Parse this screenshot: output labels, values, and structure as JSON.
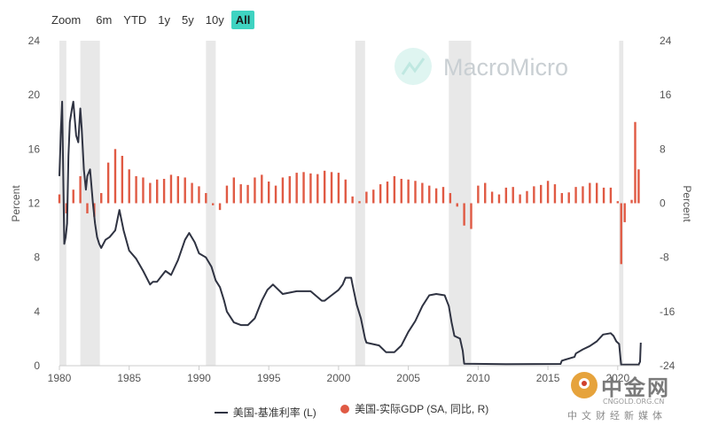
{
  "zoom": {
    "label": "Zoom",
    "buttons": [
      "6m",
      "YTD",
      "1y",
      "5y",
      "10y",
      "All"
    ],
    "active": "All",
    "active_color": "#3fd3c1"
  },
  "watermark": {
    "brand": "MacroMicro",
    "icon": "macromicro-logo-icon",
    "cn_big": "中金网",
    "cn_url": "CNGOLD.ORG.CN",
    "cn_sub": "中文财经新媒体"
  },
  "legend": {
    "line_label": "美国-基准利率 (L)",
    "bar_label": "美国-实际GDP (SA, 同比, R)"
  },
  "chart_data": {
    "type": "line+bar",
    "title": "",
    "xlabel": "",
    "ylabel_left": "Percent",
    "ylabel_right": "Percent",
    "xlim": [
      1980,
      2021.6
    ],
    "x_ticks": [
      "1980",
      "1985",
      "1990",
      "1995",
      "2000",
      "2005",
      "2010",
      "2015",
      "2020"
    ],
    "ylim_left": [
      0,
      24
    ],
    "left_ticks": [
      "0",
      "4",
      "8",
      "12",
      "16",
      "20",
      "24"
    ],
    "ylim_right": [
      -24,
      24
    ],
    "right_ticks": [
      "-24",
      "-16",
      "-8",
      "0",
      "8",
      "16",
      "24"
    ],
    "grid": false,
    "legend_position": "bottom",
    "colors": {
      "line": "#2f3342",
      "bar": "#e05a44",
      "recession": "#e8e8e8"
    },
    "recessions": [
      [
        1980.0,
        1980.5
      ],
      [
        1981.5,
        1982.9
      ],
      [
        1990.5,
        1991.2
      ],
      [
        2001.2,
        2001.9
      ],
      [
        2007.9,
        2009.5
      ],
      [
        2020.1,
        2020.4
      ]
    ],
    "series": [
      {
        "name": "美国-基准利率 (L)",
        "type": "line",
        "x": [
          1980.0,
          1980.1,
          1980.2,
          1980.3,
          1980.35,
          1980.45,
          1980.55,
          1980.65,
          1980.75,
          1980.9,
          1981.0,
          1981.2,
          1981.35,
          1981.5,
          1981.6,
          1981.75,
          1981.9,
          1982.0,
          1982.2,
          1982.4,
          1982.55,
          1982.7,
          1982.85,
          1983.0,
          1983.3,
          1983.6,
          1984.0,
          1984.3,
          1984.6,
          1985.0,
          1985.5,
          1986.0,
          1986.5,
          1986.7,
          1987.0,
          1987.3,
          1987.6,
          1988.0,
          1988.5,
          1989.0,
          1989.3,
          1989.7,
          1990.0,
          1990.5,
          1990.9,
          1991.2,
          1991.5,
          1991.8,
          1992.0,
          1992.5,
          1993.0,
          1993.5,
          1994.0,
          1994.5,
          1994.9,
          1995.3,
          1996.0,
          1997.0,
          1998.0,
          1998.8,
          1999.0,
          1999.5,
          2000.0,
          2000.3,
          2000.5,
          2000.9,
          2001.0,
          2001.3,
          2001.6,
          2001.9,
          2002.0,
          2002.9,
          2003.4,
          2004.0,
          2004.5,
          2005.0,
          2005.5,
          2006.0,
          2006.5,
          2007.0,
          2007.6,
          2007.9,
          2008.1,
          2008.3,
          2008.7,
          2008.9,
          2009.0,
          2012.0,
          2015.9,
          2016.0,
          2016.9,
          2017.0,
          2017.5,
          2018.0,
          2018.5,
          2018.95,
          2019.5,
          2019.7,
          2019.9,
          2020.1,
          2020.2,
          2020.25,
          2020.5,
          2021.0,
          2021.5,
          2021.6,
          2021.65
        ],
        "y": [
          14.0,
          17.2,
          19.5,
          12.5,
          9.0,
          9.5,
          10.5,
          15.5,
          18.0,
          19.0,
          19.5,
          17.0,
          16.5,
          19.0,
          17.5,
          14.5,
          13.0,
          14.0,
          14.5,
          12.0,
          10.5,
          9.5,
          9.0,
          8.7,
          9.3,
          9.5,
          10.0,
          11.5,
          10.0,
          8.5,
          7.9,
          7.0,
          6.0,
          6.2,
          6.2,
          6.6,
          7.0,
          6.7,
          7.8,
          9.3,
          9.8,
          9.1,
          8.3,
          8.0,
          7.3,
          6.3,
          5.8,
          4.8,
          4.0,
          3.2,
          3.0,
          3.0,
          3.5,
          4.8,
          5.6,
          6.0,
          5.3,
          5.5,
          5.5,
          4.8,
          4.8,
          5.2,
          5.6,
          6.0,
          6.5,
          6.5,
          6.0,
          4.5,
          3.5,
          2.0,
          1.7,
          1.5,
          1.0,
          1.0,
          1.5,
          2.5,
          3.3,
          4.4,
          5.2,
          5.3,
          5.2,
          4.4,
          3.2,
          2.2,
          2.0,
          1.1,
          0.15,
          0.12,
          0.13,
          0.37,
          0.65,
          0.9,
          1.2,
          1.45,
          1.8,
          2.3,
          2.4,
          2.2,
          1.8,
          1.6,
          0.5,
          0.07,
          0.08,
          0.08,
          0.08,
          0.3,
          1.7
        ]
      },
      {
        "name": "美国-实际GDP (SA, 同比, R)",
        "type": "bar",
        "x": [
          1980.0,
          1980.5,
          1981.0,
          1981.5,
          1982.0,
          1982.5,
          1983.0,
          1983.5,
          1984.0,
          1984.5,
          1985.0,
          1985.5,
          1986.0,
          1986.5,
          1987.0,
          1987.5,
          1988.0,
          1988.5,
          1989.0,
          1989.5,
          1990.0,
          1990.5,
          1991.0,
          1991.5,
          1992.0,
          1992.5,
          1993.0,
          1993.5,
          1994.0,
          1994.5,
          1995.0,
          1995.5,
          1996.0,
          1996.5,
          1997.0,
          1997.5,
          1998.0,
          1998.5,
          1999.0,
          1999.5,
          2000.0,
          2000.5,
          2001.0,
          2001.5,
          2002.0,
          2002.5,
          2003.0,
          2003.5,
          2004.0,
          2004.5,
          2005.0,
          2005.5,
          2006.0,
          2006.5,
          2007.0,
          2007.5,
          2008.0,
          2008.5,
          2009.0,
          2009.5,
          2010.0,
          2010.5,
          2011.0,
          2011.5,
          2012.0,
          2012.5,
          2013.0,
          2013.5,
          2014.0,
          2014.5,
          2015.0,
          2015.5,
          2016.0,
          2016.5,
          2017.0,
          2017.5,
          2018.0,
          2018.5,
          2019.0,
          2019.5,
          2020.0,
          2020.25,
          2020.5,
          2021.0,
          2021.25,
          2021.5
        ],
        "y": [
          1.3,
          -1.5,
          2.0,
          4.0,
          -1.5,
          -2.0,
          1.5,
          6.0,
          8.0,
          7.0,
          5.0,
          4.0,
          3.8,
          3.0,
          3.5,
          3.6,
          4.2,
          4.0,
          3.8,
          3.0,
          2.5,
          1.5,
          -0.3,
          -1.0,
          2.6,
          3.8,
          2.8,
          2.7,
          3.8,
          4.2,
          3.2,
          2.6,
          3.8,
          4.0,
          4.5,
          4.6,
          4.4,
          4.3,
          4.8,
          4.6,
          4.5,
          3.5,
          1.0,
          0.3,
          1.7,
          2.0,
          2.8,
          3.2,
          4.0,
          3.6,
          3.5,
          3.3,
          3.0,
          2.6,
          2.2,
          2.4,
          1.5,
          -0.5,
          -3.3,
          -3.8,
          2.6,
          3.0,
          1.7,
          1.3,
          2.3,
          2.4,
          1.3,
          1.8,
          2.5,
          2.7,
          3.3,
          2.8,
          1.5,
          1.6,
          2.4,
          2.5,
          3.0,
          3.0,
          2.3,
          2.3,
          0.3,
          -9.0,
          -2.8,
          0.5,
          12.0,
          5.0
        ]
      }
    ]
  }
}
